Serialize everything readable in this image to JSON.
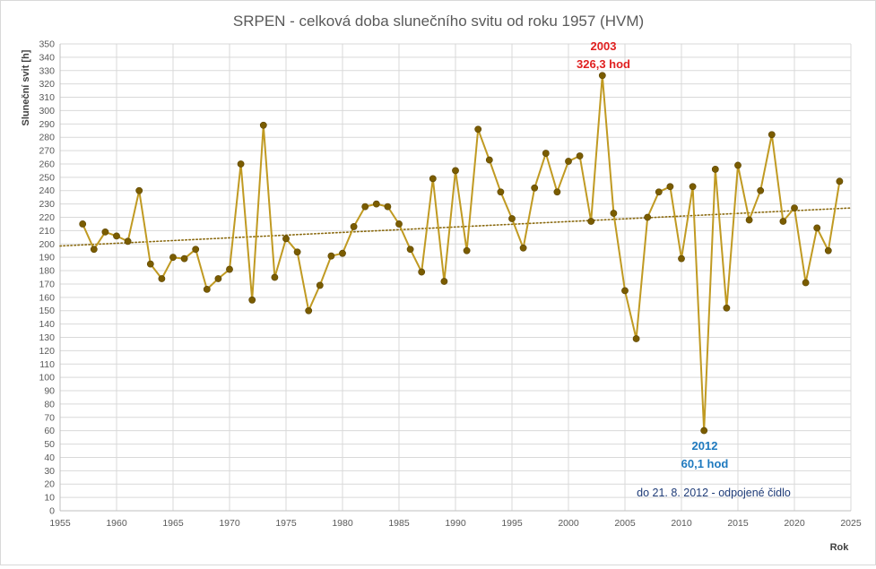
{
  "chart_data": {
    "type": "line",
    "title": "SRPEN - celková doba slunečního svitu od roku 1957 (HVM)",
    "xlabel": "Rok",
    "ylabel": "Sluneční svit [h]",
    "xlim": [
      1955,
      2025
    ],
    "ylim": [
      0,
      350
    ],
    "x_ticks": [
      1955,
      1960,
      1965,
      1970,
      1975,
      1980,
      1985,
      1990,
      1995,
      2000,
      2005,
      2010,
      2015,
      2020,
      2025
    ],
    "y_step": 10,
    "grid": true,
    "trendline": {
      "type": "linear",
      "style": "dotted",
      "from": [
        1955,
        198.5
      ],
      "to": [
        2025,
        227
      ]
    },
    "colors": {
      "line": "#c09a22",
      "marker": "#7a5c00",
      "trend": "#8a6a10",
      "max_label": "#e02020",
      "min_label": "#1f7abf",
      "note": "#1f3c78",
      "axis_text": "#595959",
      "grid": "#d9d9d9"
    },
    "series": [
      {
        "x": [
          1957,
          1958,
          1959,
          1960,
          1961,
          1962,
          1963,
          1964,
          1965,
          1966,
          1967,
          1968,
          1969,
          1970,
          1971,
          1972,
          1973,
          1974,
          1975,
          1976,
          1977,
          1978,
          1979,
          1980,
          1981,
          1982,
          1983,
          1984,
          1985,
          1986,
          1987,
          1988,
          1989,
          1990,
          1991,
          1992,
          1993,
          1994,
          1995,
          1996,
          1997,
          1998,
          1999,
          2000,
          2001,
          2002,
          2003,
          2004,
          2005,
          2006,
          2007,
          2008,
          2009,
          2010,
          2011,
          2012,
          2013,
          2014,
          2015,
          2016,
          2017,
          2018,
          2019,
          2020,
          2021,
          2022,
          2023,
          2024
        ],
        "y": [
          215,
          196,
          209,
          206,
          202,
          240,
          185,
          174,
          190,
          189,
          196,
          166,
          174,
          181,
          260,
          158,
          289,
          175,
          204,
          194,
          150,
          169,
          191,
          193,
          213,
          228,
          230,
          228,
          215,
          196,
          179,
          249,
          172,
          255,
          195,
          286,
          263,
          239,
          219,
          197,
          242,
          268,
          239,
          262,
          266,
          217,
          326.3,
          223,
          165,
          129,
          220,
          239,
          243,
          189,
          243,
          60.1,
          256,
          152,
          259,
          218,
          240,
          282,
          217,
          227,
          171,
          212,
          195,
          247
        ]
      }
    ],
    "annotations": [
      {
        "id": "max",
        "year_text": "2003",
        "value_text": "326,3 hod"
      },
      {
        "id": "min",
        "year_text": "2012",
        "value_text": "60,1 hod"
      },
      {
        "id": "note",
        "text": "do 21. 8. 2012 - odpojené čidlo"
      }
    ]
  }
}
